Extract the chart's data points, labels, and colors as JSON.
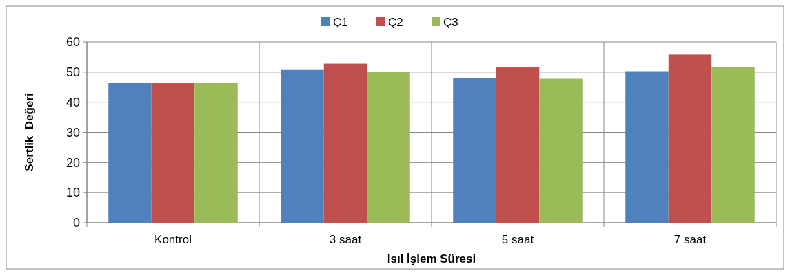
{
  "chart_data": {
    "type": "bar",
    "xlabel": "Isıl İşlem Süresi",
    "ylabel": "Sertlik  Değeri",
    "categories": [
      "Kontrol",
      "3 saat",
      "5 saat",
      "7 saat"
    ],
    "series": [
      {
        "name": "Ç1",
        "color": "#4f81bd",
        "values": [
          46.4,
          50.7,
          48.1,
          50.3
        ]
      },
      {
        "name": "Ç2",
        "color": "#c0504d",
        "values": [
          46.4,
          52.8,
          51.7,
          55.8
        ]
      },
      {
        "name": "Ç3",
        "color": "#9bbb59",
        "values": [
          46.4,
          50.0,
          47.8,
          51.7
        ]
      }
    ],
    "ylim": [
      0,
      60
    ],
    "yticks": [
      0,
      10,
      20,
      30,
      40,
      50,
      60
    ],
    "grid": true,
    "legend": "top"
  }
}
